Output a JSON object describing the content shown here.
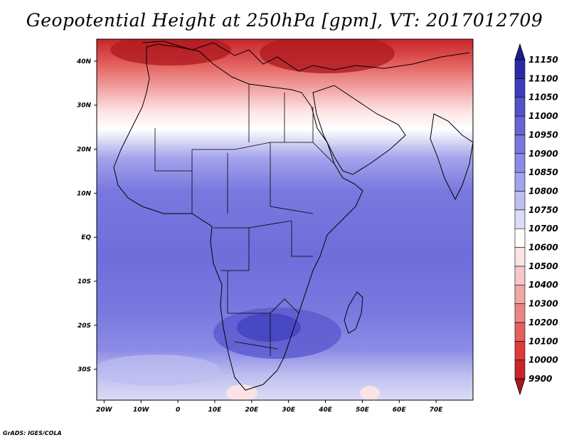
{
  "title": "Geopotential Height at 250hPa [gpm], VT: 2017012709",
  "footer": "GrADS: IGES/COLA",
  "chart_data": {
    "type": "heatmap",
    "variable": "Geopotential Height",
    "level": "250hPa",
    "units": "gpm",
    "valid_time": "2017012709",
    "lon_range": [
      -22,
      80
    ],
    "lat_range": [
      -37,
      45
    ],
    "lon_ticks": [
      {
        "value": -20,
        "label": "20W"
      },
      {
        "value": -10,
        "label": "10W"
      },
      {
        "value": 0,
        "label": "0"
      },
      {
        "value": 10,
        "label": "10E"
      },
      {
        "value": 20,
        "label": "20E"
      },
      {
        "value": 30,
        "label": "30E"
      },
      {
        "value": 40,
        "label": "40E"
      },
      {
        "value": 50,
        "label": "50E"
      },
      {
        "value": 60,
        "label": "60E"
      },
      {
        "value": 70,
        "label": "70E"
      }
    ],
    "lat_ticks": [
      {
        "value": 40,
        "label": "40N"
      },
      {
        "value": 30,
        "label": "30N"
      },
      {
        "value": 20,
        "label": "20N"
      },
      {
        "value": 10,
        "label": "10N"
      },
      {
        "value": 0,
        "label": "EQ"
      },
      {
        "value": -10,
        "label": "10S"
      },
      {
        "value": -20,
        "label": "20S"
      },
      {
        "value": -30,
        "label": "30S"
      }
    ],
    "colorbar": {
      "levels": [
        "9900",
        "10000",
        "10100",
        "10200",
        "10300",
        "10400",
        "10500",
        "10600",
        "10700",
        "10750",
        "10800",
        "10850",
        "10900",
        "10950",
        "11000",
        "11050",
        "11100",
        "11150"
      ],
      "colors": [
        "#a8171b",
        "#c8252a",
        "#db3c3a",
        "#e3605e",
        "#eb8584",
        "#f2a6a6",
        "#f8c7c7",
        "#fde4e4",
        "#ffffff",
        "#dcdcf6",
        "#bebef0",
        "#a3a3ec",
        "#8b8be6",
        "#7878df",
        "#6666d6",
        "#5252c9",
        "#3e3ebb",
        "#2a2aa8",
        "#1e1e90"
      ]
    }
  }
}
